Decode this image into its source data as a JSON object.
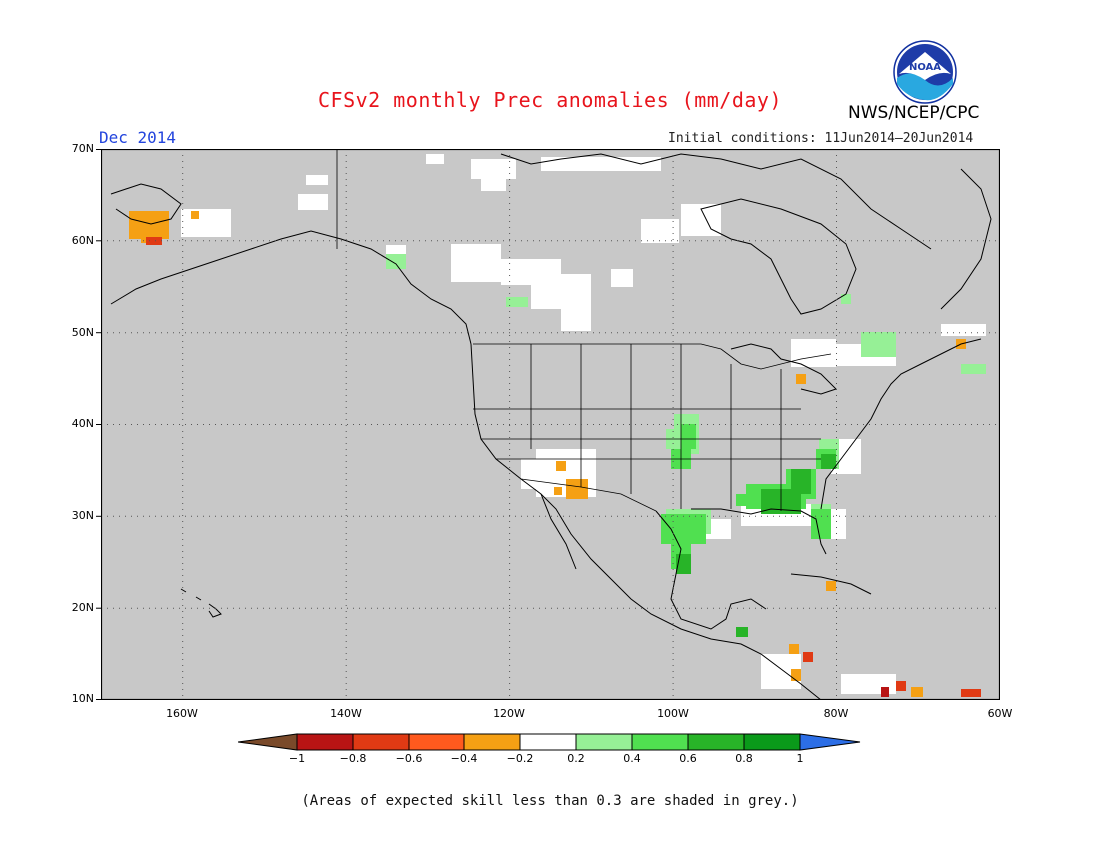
{
  "title": "CFSv2 monthly Prec anomalies (mm/day)",
  "month_label": "Dec 2014",
  "initial_conditions": "Initial conditions: 11Jun2014–20Jun2014",
  "agency": "NWS/NCEP/CPC",
  "logo_text": "NOAA",
  "footer": "(Areas of expected skill less than 0.3 are shaded in grey.)",
  "map": {
    "lon_range": [
      -170,
      -60
    ],
    "lat_range": [
      10,
      70
    ],
    "background_color": "#c8c8c8",
    "grid": true,
    "y_ticks": [
      "70N",
      "60N",
      "50N",
      "40N",
      "30N",
      "20N",
      "10N"
    ],
    "x_ticks": [
      "160W",
      "140W",
      "120W",
      "100W",
      "80W",
      "60W"
    ]
  },
  "colorbar": {
    "labels": [
      "−1",
      "−0.8",
      "−0.6",
      "−0.4",
      "−0.2",
      "0.2",
      "0.4",
      "0.6",
      "0.8",
      "1"
    ],
    "colors": [
      "#7a4a2a",
      "#b81414",
      "#e03a14",
      "#ff5a1e",
      "#f5a014",
      "#ffffff",
      "#96f096",
      "#50e050",
      "#28b428",
      "#0a9a1a",
      "#2c6ee6"
    ]
  }
}
